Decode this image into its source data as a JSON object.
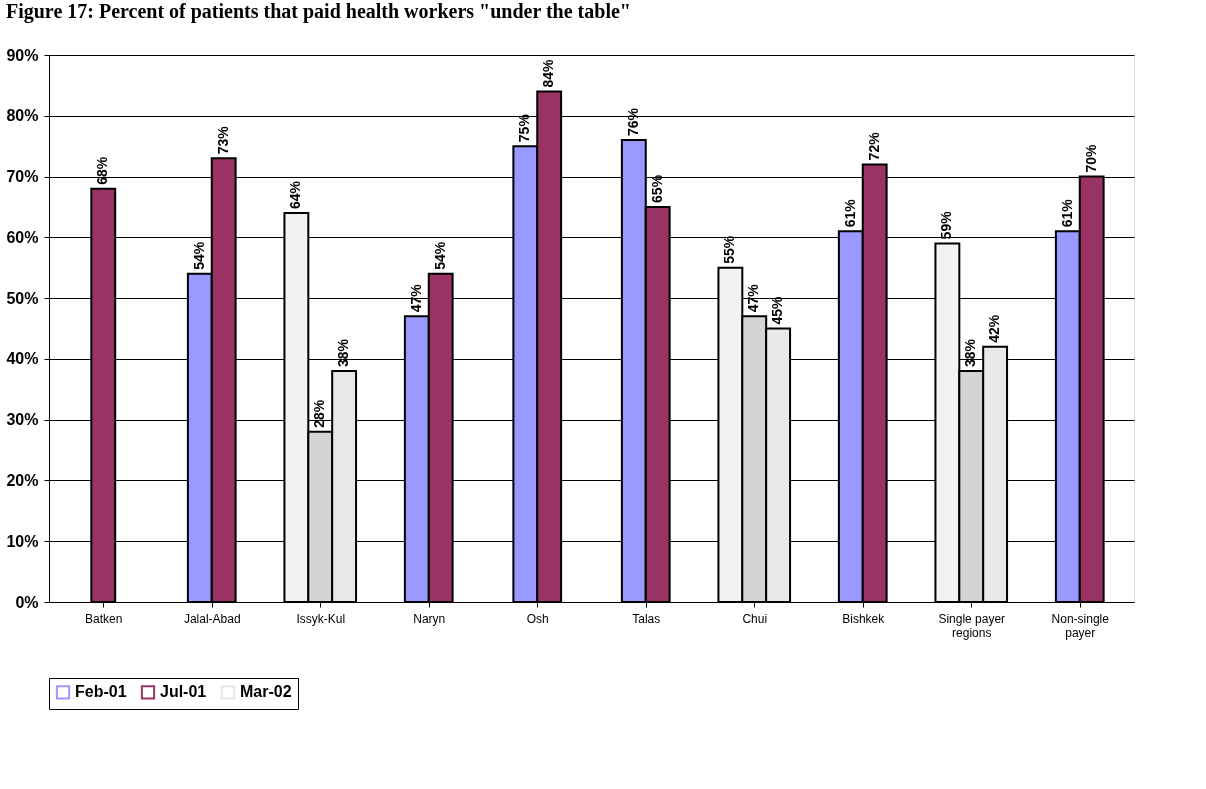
{
  "chart_data": {
    "type": "bar",
    "title": "Figure 17: Percent of patients that paid health workers \"under the table\"",
    "categories": [
      "Batken",
      "Jalal-Abad",
      "Issyk-Kul",
      "Naryn",
      "Osh",
      "Talas",
      "Chui",
      "Bishkek",
      "Single payer regions",
      "Non-single payer"
    ],
    "series": [
      {
        "name": "Feb-01",
        "color": "#9999ff",
        "colors": [
          "#9999ff",
          "#9999ff",
          "#f2f2f2",
          "#9999ff",
          "#9999ff",
          "#9999ff",
          "#f2f2f2",
          "#9999ff",
          "#f2f2f2",
          "#9999ff"
        ],
        "values": [
          null,
          54,
          64,
          47,
          75,
          76,
          55,
          61,
          59,
          61
        ],
        "value_labels": [
          null,
          "54%",
          "64%",
          "47%",
          "75%",
          "76%",
          "55%",
          "61%",
          "59%",
          "61%"
        ]
      },
      {
        "name": "Jul-01",
        "color": "#993366",
        "colors": [
          "#993366",
          "#993366",
          "#d4d4d4",
          "#993366",
          "#993366",
          "#993366",
          "#d4d4d4",
          "#993366",
          "#d4d4d4",
          "#993366"
        ],
        "values": [
          68,
          73,
          28,
          54,
          84,
          65,
          47,
          72,
          38,
          70
        ],
        "value_labels": [
          "68%",
          "73%",
          "28%",
          "54%",
          "84%",
          "65%",
          "47%",
          "72%",
          "38%",
          "70%"
        ]
      },
      {
        "name": "Mar-02",
        "color": "#e8e8e8",
        "colors": [
          null,
          null,
          "#e8e8e8",
          null,
          null,
          null,
          "#e8e8e8",
          null,
          "#e8e8e8",
          null
        ],
        "values": [
          null,
          null,
          38,
          null,
          null,
          null,
          45,
          null,
          42,
          null
        ],
        "value_labels": [
          null,
          null,
          "38%",
          null,
          null,
          null,
          "45%",
          null,
          "42%",
          null
        ]
      }
    ],
    "ylim": [
      0,
      90
    ],
    "yticks": [
      {
        "value": 0,
        "label": "0%"
      },
      {
        "value": 10,
        "label": "10%"
      },
      {
        "value": 20,
        "label": "20%"
      },
      {
        "value": 30,
        "label": "30%"
      },
      {
        "value": 40,
        "label": "40%"
      },
      {
        "value": 50,
        "label": "50%"
      },
      {
        "value": 60,
        "label": "60%"
      },
      {
        "value": 70,
        "label": "70%"
      },
      {
        "value": 80,
        "label": "80%"
      },
      {
        "value": 90,
        "label": "90%"
      }
    ],
    "grid": "y",
    "legend": "bottom"
  }
}
